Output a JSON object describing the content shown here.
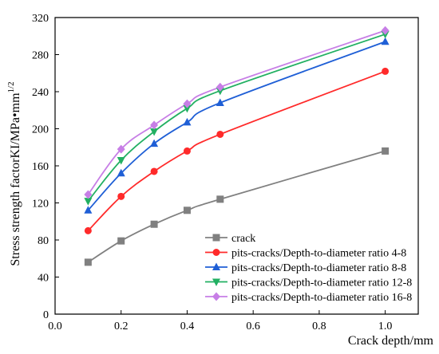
{
  "chart_data": {
    "type": "line",
    "title": "",
    "xlabel": "Crack depth/mm",
    "ylabel": "Stress strength factorKI/MPa•mm",
    "ylabel_superscript": "1/2",
    "xlim": [
      0.0,
      1.1
    ],
    "ylim": [
      0,
      320
    ],
    "x_ticks": [
      "0.0",
      "0.2",
      "0.4",
      "0.6",
      "0.8",
      "1.0"
    ],
    "y_ticks": [
      "0",
      "40",
      "80",
      "120",
      "160",
      "200",
      "240",
      "280",
      "320"
    ],
    "grid": false,
    "legend_position": "bottom-right",
    "series": [
      {
        "name": "crack",
        "color": "#808080",
        "marker": "square",
        "x": [
          0.1,
          0.2,
          0.3,
          0.4,
          0.5,
          1.0
        ],
        "y": [
          56,
          79,
          97,
          112,
          124,
          176
        ]
      },
      {
        "name": "pits-cracks/Depth-to-diameter ratio 4-8",
        "color": "#ff2a2a",
        "marker": "circle",
        "x": [
          0.1,
          0.2,
          0.3,
          0.4,
          0.5,
          1.0
        ],
        "y": [
          90,
          127,
          154,
          176,
          194,
          262
        ]
      },
      {
        "name": "pits-cracks/Depth-to-diameter ratio 8-8",
        "color": "#1f5fd6",
        "marker": "triangle-up",
        "x": [
          0.1,
          0.2,
          0.3,
          0.4,
          0.5,
          1.0
        ],
        "y": [
          112,
          152,
          184,
          207,
          228,
          294
        ]
      },
      {
        "name": "pits-cracks/Depth-to-diameter ratio 12-8",
        "color": "#22b062",
        "marker": "triangle-down",
        "x": [
          0.1,
          0.2,
          0.3,
          0.4,
          0.5,
          1.0
        ],
        "y": [
          122,
          166,
          197,
          222,
          241,
          302
        ]
      },
      {
        "name": "pits-cracks/Depth-to-diameter ratio 16-8",
        "color": "#c77ee6",
        "marker": "diamond",
        "x": [
          0.1,
          0.2,
          0.3,
          0.4,
          0.5,
          1.0
        ],
        "y": [
          129,
          178,
          204,
          227,
          245,
          306
        ]
      }
    ]
  }
}
